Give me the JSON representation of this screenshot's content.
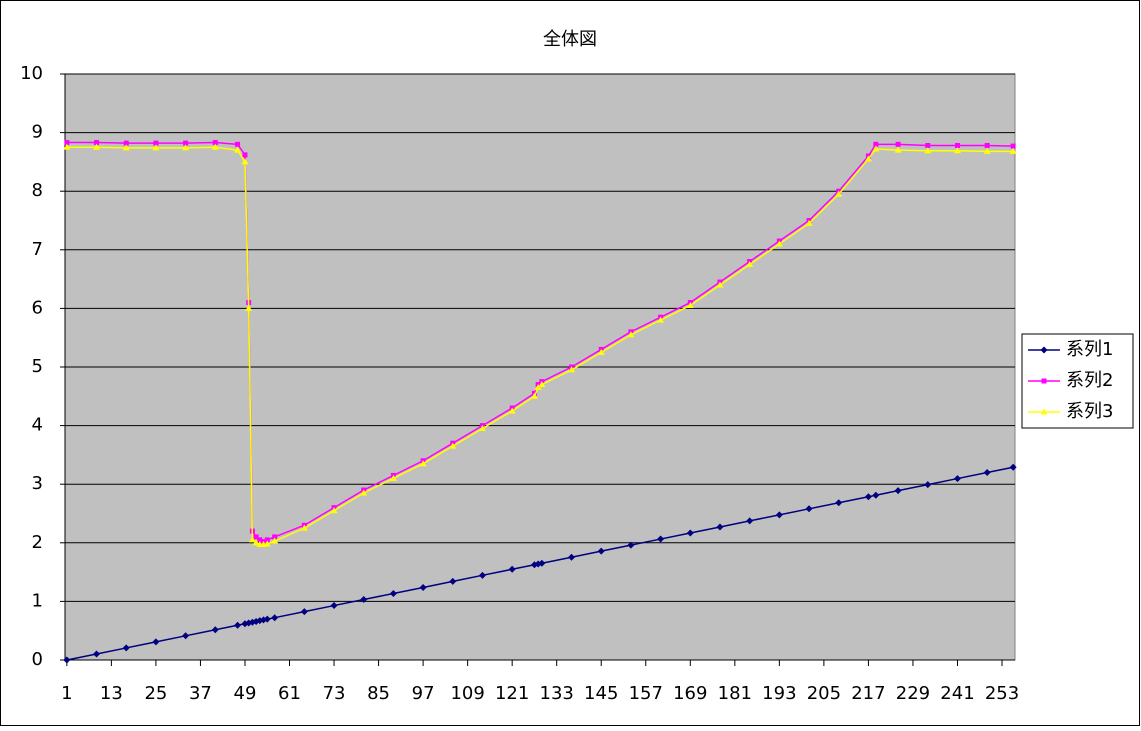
{
  "chart_data": {
    "type": "line",
    "title": "全体図",
    "x": [
      1,
      9,
      17,
      25,
      33,
      41,
      47,
      49,
      50,
      51,
      52,
      53,
      54,
      55,
      57,
      65,
      73,
      81,
      89,
      97,
      105,
      113,
      121,
      127,
      128,
      129,
      137,
      145,
      153,
      161,
      169,
      177,
      185,
      193,
      201,
      209,
      217,
      219,
      225,
      233,
      241,
      249,
      256
    ],
    "series": [
      {
        "name": "系列1",
        "color": "#000080",
        "marker": "diamond",
        "values": [
          0,
          0.103,
          0.206,
          0.31,
          0.413,
          0.516,
          0.593,
          0.619,
          0.632,
          0.645,
          0.658,
          0.671,
          0.684,
          0.697,
          0.722,
          0.826,
          0.929,
          1.032,
          1.135,
          1.238,
          1.342,
          1.445,
          1.548,
          1.625,
          1.638,
          1.651,
          1.754,
          1.858,
          1.961,
          2.064,
          2.167,
          2.27,
          2.374,
          2.477,
          2.58,
          2.683,
          2.786,
          2.812,
          2.89,
          2.993,
          3.096,
          3.199,
          3.29
        ]
      },
      {
        "name": "系列2",
        "color": "#ff00ff",
        "marker": "square",
        "values": [
          8.83,
          8.83,
          8.82,
          8.82,
          8.82,
          8.83,
          8.8,
          8.62,
          6.1,
          2.2,
          2.1,
          2.05,
          2.02,
          2.05,
          2.1,
          2.3,
          2.6,
          2.9,
          3.15,
          3.4,
          3.7,
          4.0,
          4.3,
          4.55,
          4.7,
          4.75,
          5.0,
          5.3,
          5.6,
          5.85,
          6.1,
          6.45,
          6.8,
          7.15,
          7.5,
          8.0,
          8.6,
          8.8,
          8.8,
          8.78,
          8.78,
          8.78,
          8.77
        ]
      },
      {
        "name": "系列3",
        "color": "#ffff00",
        "marker": "triangle",
        "values": [
          8.75,
          8.75,
          8.74,
          8.74,
          8.74,
          8.75,
          8.7,
          8.5,
          6.0,
          2.05,
          2.0,
          1.97,
          1.97,
          1.98,
          2.03,
          2.25,
          2.55,
          2.85,
          3.1,
          3.35,
          3.65,
          3.95,
          4.25,
          4.5,
          4.65,
          4.7,
          4.95,
          5.25,
          5.55,
          5.8,
          6.05,
          6.4,
          6.75,
          7.1,
          7.45,
          7.95,
          8.55,
          8.72,
          8.7,
          8.69,
          8.69,
          8.68,
          8.68
        ]
      }
    ],
    "xlim": [
      0.5,
      256.5
    ],
    "xticks": [
      1,
      13,
      25,
      37,
      49,
      61,
      73,
      85,
      97,
      109,
      121,
      133,
      145,
      157,
      169,
      181,
      193,
      205,
      217,
      229,
      241,
      253
    ],
    "ylim": [
      0,
      10
    ],
    "yticks": [
      0,
      1,
      2,
      3,
      4,
      5,
      6,
      7,
      8,
      9,
      10
    ],
    "grid": true,
    "legend": "right"
  }
}
